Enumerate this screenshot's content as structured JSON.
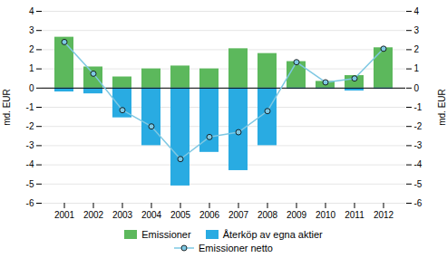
{
  "chart_data": {
    "type": "bar",
    "categories": [
      "2001",
      "2002",
      "2003",
      "2004",
      "2005",
      "2006",
      "2007",
      "2008",
      "2009",
      "2010",
      "2011",
      "2012"
    ],
    "series": [
      {
        "name": "Emissioner",
        "type": "bar",
        "color": "#5cb85c",
        "values": [
          2.65,
          1.1,
          0.58,
          1.0,
          1.15,
          1.0,
          2.05,
          1.8,
          1.38,
          0.35,
          0.65,
          2.1
        ]
      },
      {
        "name": "Återköp av egna aktier",
        "type": "bar",
        "color": "#29abe2",
        "values": [
          -0.2,
          -0.3,
          -1.55,
          -3.0,
          -5.1,
          -3.35,
          -4.3,
          -3.0,
          -0.05,
          -0.05,
          -0.15,
          -0.05
        ]
      },
      {
        "name": "Emissioner netto",
        "type": "line",
        "color": "#7ec8e3",
        "marker": "circle",
        "values": [
          2.4,
          0.75,
          -1.15,
          -2.0,
          -3.7,
          -2.55,
          -2.3,
          -1.2,
          1.35,
          0.3,
          0.5,
          2.05
        ]
      }
    ],
    "ylabel": "md. EUR",
    "y2label": "md. EUR",
    "ylim": [
      -6,
      4
    ],
    "yticks": [
      -6,
      -5,
      -4,
      -3,
      -2,
      -1,
      0,
      1,
      2,
      3,
      4
    ],
    "y2lim": [
      -6,
      4
    ],
    "y2ticks": [
      -6,
      -5,
      -4,
      -3,
      -2,
      -1,
      0,
      1,
      2,
      3,
      4
    ],
    "grid": true,
    "legend": "bottom"
  }
}
